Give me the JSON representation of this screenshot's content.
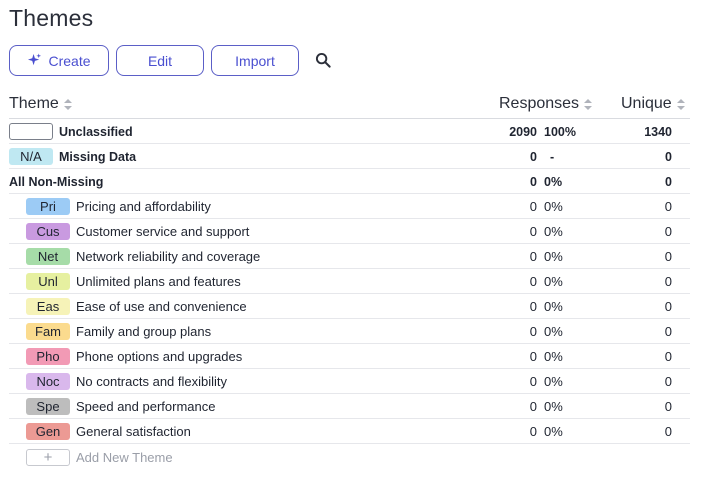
{
  "page": {
    "title": "Themes"
  },
  "toolbar": {
    "create_label": "Create",
    "edit_label": "Edit",
    "import_label": "Import",
    "search_icon": "search-icon",
    "accent": "#5b5fc7"
  },
  "table": {
    "columns": {
      "theme": "Theme",
      "responses": "Responses",
      "unique": "Unique"
    },
    "summary_rows": [
      {
        "label": "Unclassified",
        "responses": "2090",
        "percent": "100%",
        "unique": "1340"
      },
      {
        "chip": "N/A",
        "chip_color": "#bfe8f2",
        "label": "Missing Data",
        "responses": "0",
        "percent": "-",
        "unique": "0"
      },
      {
        "label": "All Non-Missing",
        "responses": "0",
        "percent": "0%",
        "unique": "0"
      }
    ],
    "themes": [
      {
        "code": "Pri",
        "color": "#9ccbf5",
        "label": "Pricing and affordability",
        "responses": "0",
        "percent": "0%",
        "unique": "0"
      },
      {
        "code": "Cus",
        "color": "#c99ae0",
        "label": "Customer service and support",
        "responses": "0",
        "percent": "0%",
        "unique": "0"
      },
      {
        "code": "Net",
        "color": "#a6dca8",
        "label": "Network reliability and coverage",
        "responses": "0",
        "percent": "0%",
        "unique": "0"
      },
      {
        "code": "Unl",
        "color": "#e6f0a0",
        "label": "Unlimited plans and features",
        "responses": "0",
        "percent": "0%",
        "unique": "0"
      },
      {
        "code": "Eas",
        "color": "#f6f3b8",
        "label": "Ease of use and convenience",
        "responses": "0",
        "percent": "0%",
        "unique": "0"
      },
      {
        "code": "Fam",
        "color": "#fbdb8e",
        "label": "Family and group plans",
        "responses": "0",
        "percent": "0%",
        "unique": "0"
      },
      {
        "code": "Pho",
        "color": "#f29ab5",
        "label": "Phone options and upgrades",
        "responses": "0",
        "percent": "0%",
        "unique": "0"
      },
      {
        "code": "Noc",
        "color": "#d9b8ec",
        "label": "No contracts and flexibility",
        "responses": "0",
        "percent": "0%",
        "unique": "0"
      },
      {
        "code": "Spe",
        "color": "#bdbdbd",
        "label": "Speed and performance",
        "responses": "0",
        "percent": "0%",
        "unique": "0"
      },
      {
        "code": "Gen",
        "color": "#ec9a94",
        "label": "General satisfaction",
        "responses": "0",
        "percent": "0%",
        "unique": "0"
      }
    ],
    "add_label": "Add New Theme",
    "add_symbol": "+"
  }
}
